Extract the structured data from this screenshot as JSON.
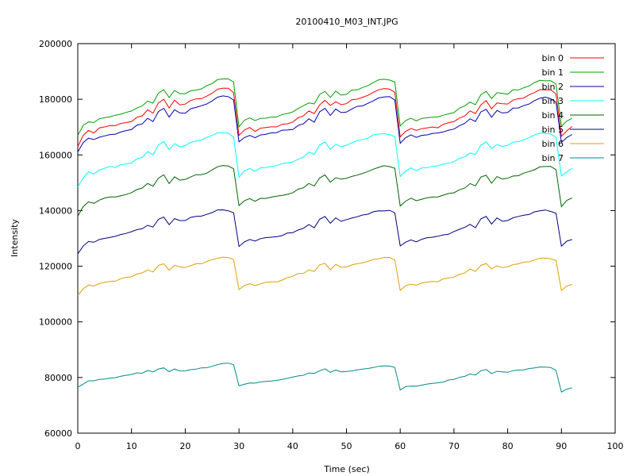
{
  "chart_data": {
    "type": "line",
    "title": "20100410_M03_INT.JPG",
    "xlabel": "Time (sec)",
    "ylabel": "Intensity",
    "xlim": [
      0,
      100
    ],
    "ylim": [
      60000,
      200000
    ],
    "x_ticks": [
      "0",
      "10",
      "20",
      "30",
      "40",
      "50",
      "60",
      "70",
      "80",
      "90",
      "100"
    ],
    "y_ticks": [
      "60000",
      "80000",
      "100000",
      "120000",
      "140000",
      "160000",
      "180000",
      "200000"
    ],
    "grid": false,
    "legend": "top-right",
    "x": [
      0,
      1,
      2,
      3,
      4,
      5,
      6,
      7,
      8,
      9,
      10,
      11,
      12,
      13,
      14,
      15,
      16,
      17,
      18,
      19,
      20,
      21,
      22,
      23,
      24,
      25,
      26,
      27,
      28,
      29,
      30,
      31,
      32,
      33,
      34,
      35,
      36,
      37,
      38,
      39,
      40,
      41,
      42,
      43,
      44,
      45,
      46,
      47,
      48,
      49,
      50,
      51,
      52,
      53,
      54,
      55,
      56,
      57,
      58,
      59,
      60,
      61,
      62,
      63,
      64,
      65,
      66,
      67,
      68,
      69,
      70,
      71,
      72,
      73,
      74,
      75,
      76,
      77,
      78,
      79,
      80,
      81,
      82,
      83,
      84,
      85,
      86,
      87,
      88,
      89,
      90,
      91,
      92
    ],
    "series": [
      {
        "name": "bin 0",
        "color": "#ff0000",
        "values": [
          163000,
          167000,
          168800,
          167880,
          169720,
          170050,
          170550,
          170510,
          171340,
          171620,
          172020,
          173540,
          174050,
          176220,
          174980,
          178690,
          180000,
          176870,
          179690,
          178000,
          178270,
          179550,
          180120,
          180220,
          181130,
          182170,
          183600,
          184000,
          183950,
          182360,
          167000,
          168960,
          169850,
          168460,
          169640,
          169850,
          170090,
          170100,
          171030,
          171170,
          171830,
          173330,
          174060,
          175780,
          174860,
          177960,
          179640,
          177770,
          179100,
          178070,
          178420,
          179840,
          180050,
          180720,
          181440,
          182480,
          183400,
          183850,
          183680,
          182480,
          166500,
          168480,
          169480,
          168820,
          169440,
          169710,
          170040,
          169750,
          170960,
          171610,
          171960,
          173220,
          174010,
          175820,
          174880,
          177950,
          179530,
          176560,
          178660,
          178420,
          178300,
          179700,
          180210,
          180430,
          181650,
          182420,
          183450,
          183370,
          183440,
          181890,
          166700,
          168650,
          170230
        ]
      },
      {
        "name": "bin 1",
        "color": "#00a000",
        "values": [
          167000,
          170600,
          171860,
          171640,
          173040,
          173380,
          173700,
          174290,
          174640,
          175270,
          175800,
          176860,
          177610,
          179350,
          178610,
          182250,
          183430,
          180650,
          183170,
          182000,
          182020,
          183040,
          183310,
          183730,
          184890,
          185650,
          187050,
          187300,
          187320,
          186190,
          170100,
          172450,
          173290,
          172330,
          173180,
          173210,
          173600,
          173650,
          174530,
          174880,
          175440,
          176690,
          177700,
          178670,
          178340,
          181710,
          182840,
          180660,
          182950,
          181500,
          181790,
          183340,
          183380,
          184230,
          184950,
          186000,
          187000,
          187200,
          186920,
          186190,
          170400,
          172350,
          173220,
          172260,
          173140,
          173380,
          173550,
          173660,
          174260,
          174780,
          175220,
          176800,
          177640,
          178980,
          178050,
          181620,
          182850,
          180280,
          182340,
          182140,
          181810,
          183430,
          183360,
          184150,
          184810,
          186020,
          186810,
          186640,
          186670,
          185470,
          170300,
          172190,
          173180
        ]
      },
      {
        "name": "bin 2",
        "color": "#0000b0",
        "values": [
          161000,
          164450,
          166000,
          165520,
          166360,
          166840,
          167320,
          167480,
          168250,
          168750,
          169110,
          170720,
          171150,
          173170,
          172000,
          175580,
          176750,
          173600,
          176240,
          175080,
          175000,
          176590,
          177080,
          177670,
          178310,
          179400,
          180750,
          181200,
          180950,
          179740,
          164700,
          166230,
          167020,
          166180,
          167170,
          167440,
          167920,
          168010,
          168880,
          168950,
          169130,
          170570,
          171190,
          172970,
          171760,
          175490,
          176730,
          174200,
          176510,
          175230,
          175380,
          176530,
          177450,
          177630,
          178550,
          179450,
          180500,
          180840,
          180970,
          179730,
          164200,
          166200,
          167170,
          166300,
          167050,
          167220,
          167690,
          167900,
          168260,
          168880,
          169290,
          170460,
          171330,
          172980,
          172030,
          175460,
          176380,
          173540,
          175960,
          175080,
          175250,
          176810,
          176870,
          177720,
          178290,
          179530,
          180350,
          180790,
          180190,
          178910,
          164500,
          166280,
          167350
        ]
      },
      {
        "name": "bin 3",
        "color": "#00ffff",
        "values": [
          148500,
          151700,
          153930,
          153170,
          154580,
          155240,
          155860,
          155520,
          156490,
          156710,
          157120,
          158660,
          159080,
          161230,
          160000,
          163520,
          164830,
          161870,
          164050,
          162880,
          163400,
          164500,
          164960,
          165360,
          166310,
          167000,
          167920,
          168000,
          167810,
          166390,
          152000,
          154270,
          155150,
          154110,
          155350,
          155500,
          155860,
          156150,
          156850,
          157130,
          157420,
          158460,
          159220,
          161020,
          160230,
          163570,
          164670,
          161990,
          163880,
          162960,
          163480,
          164370,
          165090,
          165560,
          166020,
          167280,
          167490,
          167630,
          167330,
          166540,
          152300,
          154140,
          155340,
          154350,
          155340,
          155370,
          155900,
          156090,
          156730,
          157010,
          157560,
          158780,
          159310,
          160700,
          160130,
          163540,
          164700,
          162220,
          163720,
          163050,
          163450,
          164580,
          164780,
          165450,
          166250,
          167140,
          167900,
          167710,
          167520,
          166360,
          152400,
          153940,
          155240
        ]
      },
      {
        "name": "bin 4",
        "color": "#006400",
        "values": [
          138000,
          141400,
          143150,
          142590,
          143730,
          144520,
          144900,
          144890,
          145320,
          145760,
          146460,
          147560,
          148120,
          149760,
          148750,
          151640,
          152860,
          149690,
          152130,
          150940,
          151220,
          152060,
          152890,
          152890,
          153430,
          154660,
          155730,
          156190,
          156000,
          155030,
          141800,
          143520,
          144310,
          143330,
          144400,
          144380,
          144820,
          145170,
          145420,
          145820,
          146370,
          147680,
          148180,
          149730,
          148860,
          151690,
          152850,
          150230,
          151810,
          151300,
          151590,
          152280,
          152760,
          153340,
          154030,
          154860,
          155540,
          156130,
          155800,
          155220,
          141600,
          143360,
          144460,
          143550,
          144080,
          144560,
          144860,
          144920,
          145540,
          146140,
          146390,
          147450,
          148070,
          149700,
          148880,
          152030,
          152700,
          149850,
          152210,
          151350,
          151610,
          152420,
          152530,
          153470,
          154040,
          154670,
          155730,
          155820,
          155880,
          154700,
          141400,
          143680,
          144570
        ]
      },
      {
        "name": "bin 5",
        "color": "#000080",
        "values": [
          124500,
          127200,
          128900,
          128600,
          129640,
          129990,
          130370,
          130750,
          131400,
          131810,
          132430,
          133140,
          133470,
          134710,
          134070,
          136850,
          137680,
          134930,
          137100,
          136410,
          136410,
          137570,
          137900,
          138010,
          138640,
          139260,
          140250,
          140270,
          139910,
          139250,
          127100,
          128740,
          129610,
          129060,
          129910,
          130280,
          130440,
          130610,
          130990,
          131900,
          132050,
          133010,
          133640,
          134960,
          133790,
          136880,
          137870,
          135450,
          137380,
          136120,
          136770,
          137310,
          137780,
          138420,
          138700,
          139580,
          139930,
          139860,
          140080,
          139180,
          127300,
          128630,
          129460,
          128770,
          129690,
          130270,
          130420,
          130770,
          131260,
          131490,
          132480,
          133240,
          133960,
          135040,
          133830,
          137010,
          137890,
          135150,
          137360,
          136150,
          136410,
          137400,
          137890,
          138330,
          138590,
          139560,
          139880,
          140210,
          139700,
          139050,
          127200,
          129000,
          129600
        ]
      },
      {
        "name": "bin 6",
        "color": "#e0a000",
        "values": [
          109500,
          111900,
          113270,
          112900,
          113790,
          114210,
          114520,
          114620,
          115510,
          116010,
          116200,
          117180,
          117590,
          118640,
          117940,
          120270,
          120900,
          118560,
          120330,
          119760,
          119510,
          120180,
          120890,
          120890,
          121710,
          122350,
          122850,
          123270,
          123120,
          122400,
          111600,
          113030,
          113710,
          113020,
          113620,
          114210,
          114440,
          114350,
          115000,
          115900,
          116380,
          117380,
          117380,
          118750,
          118090,
          120510,
          121050,
          118720,
          120640,
          119580,
          119770,
          120450,
          120900,
          121180,
          121760,
          122430,
          122660,
          123160,
          123190,
          122220,
          111300,
          112970,
          113590,
          113190,
          113970,
          114280,
          114520,
          114400,
          115460,
          115780,
          116120,
          117030,
          117560,
          118980,
          118150,
          120290,
          120980,
          119000,
          120150,
          119520,
          119730,
          120600,
          120860,
          121470,
          121600,
          122230,
          122880,
          122950,
          122630,
          122080,
          111300,
          112920,
          113480
        ]
      },
      {
        "name": "bin 7",
        "color": "#008b8b",
        "values": [
          76500,
          77620,
          78810,
          78810,
          79340,
          79440,
          79790,
          79930,
          80440,
          80790,
          81090,
          81670,
          81540,
          82540,
          82010,
          83070,
          83480,
          82100,
          83070,
          82340,
          82400,
          82800,
          83010,
          83470,
          83520,
          84040,
          84630,
          85070,
          85180,
          84620,
          77000,
          77560,
          78020,
          77990,
          78420,
          78570,
          78740,
          78970,
          79300,
          79710,
          80150,
          80550,
          80810,
          81630,
          81500,
          82410,
          83130,
          81860,
          82690,
          82040,
          82170,
          82360,
          82720,
          83040,
          83240,
          83590,
          84050,
          84140,
          84130,
          83650,
          75500,
          76700,
          76940,
          76910,
          77260,
          77650,
          77900,
          78110,
          78350,
          79090,
          79320,
          80050,
          80410,
          81270,
          80890,
          82450,
          82860,
          81400,
          82200,
          82030,
          81870,
          82470,
          82700,
          82740,
          83250,
          83430,
          83790,
          83730,
          83600,
          82560,
          74800,
          75800,
          76300
        ]
      }
    ]
  }
}
